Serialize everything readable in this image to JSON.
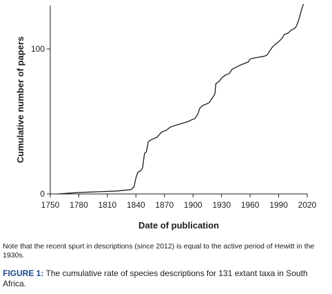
{
  "chart_data": {
    "type": "line",
    "xlabel": "Date of publication",
    "ylabel": "Cumulative number of papers",
    "xlim": [
      1750,
      2020
    ],
    "ylim": [
      0,
      130
    ],
    "xticks": [
      1750,
      1780,
      1810,
      1840,
      1870,
      1900,
      1930,
      1960,
      1990,
      2020
    ],
    "yticks": [
      0,
      100
    ],
    "grid": false,
    "legend": "none",
    "line_color": "#1a1a1a",
    "series": [
      {
        "x": [
          1758,
          1780,
          1800,
          1820,
          1835,
          1838,
          1840,
          1842,
          1845,
          1847,
          1849,
          1851,
          1853,
          1855,
          1858,
          1862,
          1866,
          1868,
          1872,
          1876,
          1880,
          1885,
          1890,
          1895,
          1898,
          1902,
          1905,
          1907,
          1910,
          1914,
          1917,
          1920,
          1923,
          1924,
          1926,
          1928,
          1930,
          1932,
          1934,
          1938,
          1941,
          1944,
          1947,
          1950,
          1954,
          1958,
          1960,
          1962,
          1966,
          1970,
          1975,
          1978,
          1980,
          1983,
          1986,
          1988,
          1990,
          1993,
          1996,
          2000,
          2003,
          2006,
          2008,
          2010,
          2012,
          2014,
          2016
        ],
        "y": [
          0,
          1,
          1.5,
          2,
          3,
          5,
          11,
          15,
          16,
          18,
          28,
          29,
          36,
          37,
          38,
          39,
          42,
          43,
          44,
          46,
          47,
          48,
          49,
          50,
          51,
          52,
          55,
          59,
          61,
          62,
          63,
          66,
          69,
          76,
          77,
          78,
          80,
          81,
          82,
          83,
          86,
          87,
          88,
          89,
          90,
          91,
          93,
          93.5,
          94,
          94.5,
          95,
          96,
          98,
          101,
          103,
          104,
          105,
          107,
          110,
          111,
          113,
          114,
          115,
          118,
          122,
          127,
          131
        ]
      }
    ]
  },
  "note": "Note that the recent spurt in descriptions (since 2012) is equal to the active period of Hewitt in the 1930s.",
  "caption": {
    "label": "FIGURE 1:",
    "text": " The cumulative rate of species descriptions for 131 extant taxa in South Africa."
  }
}
